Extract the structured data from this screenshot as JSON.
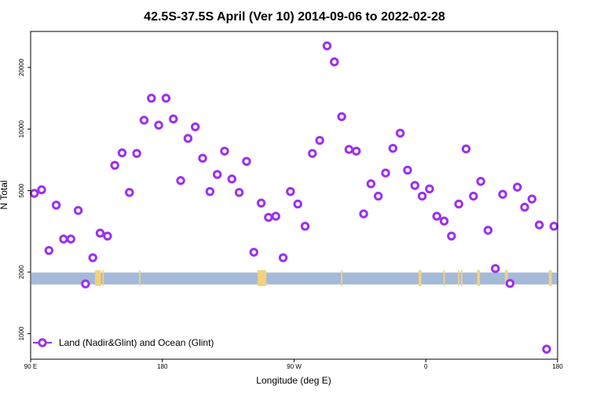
{
  "chart_data": {
    "type": "scatter",
    "title": "42.5S-37.5S April (Ver 10)   2014-09-06 to 2022-02-28",
    "xlabel": "Longitude (deg E)",
    "ylabel": "N Total",
    "y_scale": "log",
    "xlim": [
      90,
      450
    ],
    "ylim": [
      750,
      30000
    ],
    "x_ticks": [
      {
        "value": 90,
        "label": "90 E"
      },
      {
        "value": 180,
        "label": "180"
      },
      {
        "value": 270,
        "label": "90 W"
      },
      {
        "value": 360,
        "label": "0"
      },
      {
        "value": 450,
        "label": "180"
      }
    ],
    "y_ticks": [
      {
        "value": 1000,
        "label": "1000"
      },
      {
        "value": 2000,
        "label": "2000"
      },
      {
        "value": 5000,
        "label": "5000"
      },
      {
        "value": 10000,
        "label": "10000"
      },
      {
        "value": 20000,
        "label": "20000"
      }
    ],
    "legend": {
      "position": "bottom-left",
      "label": "Land (Nadir&Glint) and Ocean (Glint)"
    },
    "colors": {
      "series": "#9b30f0",
      "ocean_band": "#a5b9d9",
      "land_band": "#f2d27a"
    },
    "band": {
      "y_low": 1740,
      "y_high": 1990
    },
    "land_segments": [
      [
        134,
        138
      ],
      [
        139,
        140
      ],
      [
        164,
        165
      ],
      [
        245,
        251
      ],
      [
        302,
        303
      ],
      [
        355,
        357
      ],
      [
        372,
        373
      ],
      [
        382,
        383
      ],
      [
        384,
        385
      ],
      [
        395,
        397
      ],
      [
        414,
        416
      ],
      [
        444,
        446
      ]
    ],
    "series": [
      {
        "name": "Land (Nadir&Glint) and Ocean (Glint)",
        "x": [
          92.5,
          97.5,
          102.5,
          107.5,
          112.5,
          117.5,
          122.5,
          127.5,
          132.5,
          137.5,
          142.5,
          147.5,
          152.5,
          157.5,
          162.5,
          167.5,
          172.5,
          177.5,
          182.5,
          187.5,
          192.5,
          197.5,
          202.5,
          207.5,
          212.5,
          217.5,
          222.5,
          227.5,
          232.5,
          237.5,
          242.5,
          247.5,
          252.5,
          257.5,
          262.5,
          267.5,
          272.5,
          277.5,
          282.5,
          287.5,
          292.5,
          297.5,
          302.5,
          307.5,
          312.5,
          317.5,
          322.5,
          327.5,
          332.5,
          337.5,
          342.5,
          347.5,
          352.5,
          357.5,
          362.5,
          367.5,
          372.5,
          377.5,
          382.5,
          387.5,
          392.5,
          397.5,
          402.5,
          407.5,
          412.5,
          417.5,
          422.5,
          427.5,
          432.5,
          437.5,
          442.5,
          447.5
        ],
        "y": [
          4850,
          5050,
          2550,
          4250,
          2900,
          2900,
          4000,
          1750,
          2350,
          3100,
          3000,
          6650,
          7650,
          4900,
          7600,
          11050,
          14150,
          10450,
          14150,
          11200,
          5600,
          9000,
          10250,
          7200,
          4950,
          6000,
          7800,
          5700,
          4900,
          6950,
          2500,
          4350,
          3700,
          3750,
          2350,
          4950,
          4300,
          3350,
          7600,
          8800,
          25500,
          21300,
          11500,
          7950,
          7800,
          3850,
          5400,
          4700,
          6100,
          8050,
          9550,
          6300,
          5300,
          4700,
          5100,
          3750,
          3550,
          3000,
          4300,
          8000,
          4700,
          5550,
          3200,
          2080,
          4800,
          1760,
          5200,
          4150,
          4550,
          3400,
          840,
          3350
        ]
      }
    ]
  }
}
